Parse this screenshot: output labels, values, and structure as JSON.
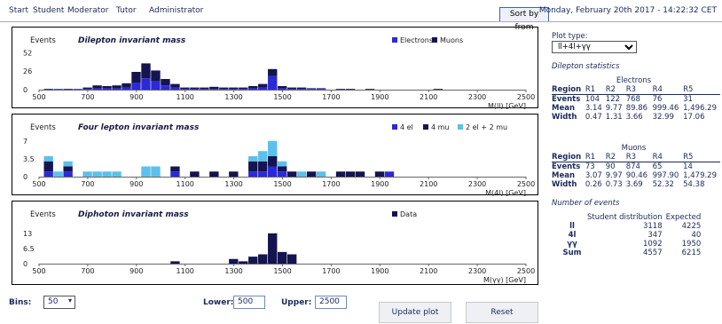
{
  "nav": {
    "items": [
      "Start",
      "Student",
      "Moderator",
      "Tutor",
      "Administrator"
    ],
    "sort_label": "Sort by from",
    "datetime": "Monday, February 20th 2017 - 14:22:32 CET"
  },
  "colors": {
    "electrons": "#2a2ad8",
    "muons": "#141450",
    "light_blue": "#5bc0eb",
    "data": "#141450"
  },
  "chart_data": [
    {
      "type": "bar",
      "title": "Dilepton invariant mass",
      "ylabel": "Events",
      "xlabel": "M(ll) [GeV]",
      "xlim": [
        500,
        2500
      ],
      "ylim": [
        0,
        60
      ],
      "yticks": [
        0,
        26,
        52
      ],
      "xticks": [
        500,
        700,
        900,
        1100,
        1300,
        1500,
        1700,
        1900,
        2100,
        2300,
        2500
      ],
      "bin_width": 40,
      "stacked": true,
      "x": [
        540,
        580,
        620,
        660,
        700,
        740,
        780,
        820,
        860,
        900,
        940,
        980,
        1020,
        1060,
        1100,
        1140,
        1180,
        1220,
        1260,
        1300,
        1340,
        1380,
        1420,
        1460,
        1500,
        1540,
        1580,
        1620,
        1660,
        1700,
        1740,
        1780,
        1820,
        1860,
        1900,
        1940,
        1980,
        2020,
        2060,
        2100,
        2140,
        2180,
        2220,
        2260
      ],
      "series": [
        {
          "name": "Electrons",
          "values": [
            0,
            1,
            0,
            1,
            1,
            2,
            2,
            2,
            3,
            10,
            16,
            12,
            6,
            3,
            1,
            1,
            1,
            1,
            1,
            1,
            1,
            2,
            3,
            19,
            2,
            1,
            1,
            1,
            1,
            0,
            0,
            0,
            0,
            0,
            0,
            0,
            0,
            0,
            0,
            0,
            0,
            0,
            0,
            0
          ]
        },
        {
          "name": "Muons",
          "values": [
            1,
            0,
            1,
            0,
            2,
            4,
            3,
            4,
            6,
            15,
            21,
            15,
            9,
            5,
            2,
            2,
            2,
            3,
            2,
            2,
            2,
            3,
            5,
            10,
            3,
            2,
            2,
            1,
            1,
            0,
            1,
            1,
            0,
            1,
            0,
            0,
            0,
            0,
            0,
            0,
            1,
            0,
            0,
            0
          ]
        }
      ]
    },
    {
      "type": "bar",
      "title": "Four lepton invariant mass",
      "ylabel": "Events",
      "xlabel": "M(4l) [GeV]",
      "xlim": [
        500,
        2500
      ],
      "ylim": [
        0,
        8
      ],
      "yticks": [
        0,
        3.5,
        7
      ],
      "xticks": [
        500,
        700,
        900,
        1100,
        1300,
        1500,
        1700,
        1900,
        2100,
        2300,
        2500
      ],
      "bin_width": 40,
      "stacked": true,
      "x": [
        540,
        580,
        620,
        700,
        740,
        780,
        820,
        860,
        900,
        940,
        980,
        1020,
        1060,
        1100,
        1140,
        1180,
        1220,
        1260,
        1300,
        1340,
        1380,
        1420,
        1460,
        1500,
        1540,
        1580,
        1620,
        1660,
        1700,
        1740,
        1780,
        1820,
        1860,
        1900,
        1940
      ],
      "series": [
        {
          "name": "4 el",
          "values": [
            1,
            0,
            1,
            0,
            0,
            0,
            0,
            0,
            0,
            0,
            0,
            0,
            1,
            0,
            0,
            0,
            0,
            0,
            0,
            0,
            1,
            1,
            2,
            1,
            0,
            0,
            0,
            0,
            0,
            0,
            0,
            0,
            0,
            0,
            1
          ]
        },
        {
          "name": "4 mu",
          "values": [
            2,
            0,
            1,
            0,
            0,
            0,
            0,
            0,
            0,
            0,
            0,
            0,
            1,
            0,
            1,
            0,
            1,
            0,
            1,
            0,
            2,
            2,
            2,
            1,
            1,
            0,
            1,
            0,
            0,
            1,
            1,
            1,
            0,
            1,
            0
          ]
        },
        {
          "name": "2 el + 2 mu",
          "values": [
            1,
            1,
            1,
            1,
            1,
            1,
            1,
            0,
            0,
            2,
            2,
            0,
            0,
            0,
            0,
            0,
            0,
            0,
            0,
            0,
            1,
            2,
            3,
            1,
            0,
            1,
            0,
            1,
            0,
            0,
            0,
            0,
            0,
            0,
            0
          ]
        }
      ]
    },
    {
      "type": "bar",
      "title": "Diphoton invariant mass",
      "ylabel": "Events",
      "xlabel": "M(γγ) [GeV]",
      "xlim": [
        500,
        2500
      ],
      "ylim": [
        0,
        16
      ],
      "yticks": [
        0,
        6.5,
        13
      ],
      "xticks": [
        500,
        700,
        900,
        1100,
        1300,
        1500,
        1700,
        1900,
        2100,
        2300,
        2500
      ],
      "bin_width": 40,
      "stacked": false,
      "x": [
        1060,
        1180,
        1300,
        1340,
        1380,
        1420,
        1460,
        1500,
        1540
      ],
      "series": [
        {
          "name": "Data",
          "values": [
            1,
            0,
            2,
            1,
            3,
            4,
            13,
            5,
            4
          ]
        }
      ]
    }
  ],
  "plot_type": {
    "label": "Plot type:",
    "selected": "ll+4l+γγ"
  },
  "dilepton_label": "Dilepton statistics",
  "electrons": {
    "caption": "Electrons",
    "columns": [
      "Region",
      "R1",
      "R2",
      "R3",
      "R4",
      "R5"
    ],
    "rows": [
      [
        "Events",
        "104",
        "122",
        "768",
        "76",
        "31"
      ],
      [
        "Mean",
        "3.14",
        "9.77",
        "89.86",
        "999.46",
        "1,496.29"
      ],
      [
        "Width",
        "0.47",
        "1.31",
        "3.66",
        "32.99",
        "17.06"
      ]
    ]
  },
  "muons": {
    "caption": "Muons",
    "columns": [
      "Region",
      "R1",
      "R2",
      "R3",
      "R4",
      "R5"
    ],
    "rows": [
      [
        "Events",
        "73",
        "90",
        "874",
        "65",
        "14"
      ],
      [
        "Mean",
        "3.07",
        "9.97",
        "90.46",
        "997.90",
        "1,479.29"
      ],
      [
        "Width",
        "0.26",
        "0.73",
        "3.69",
        "52.32",
        "54.38"
      ]
    ]
  },
  "number_label": "Number of events",
  "events_table": {
    "columns": [
      "",
      "Student distribution",
      "Expected"
    ],
    "rows": [
      [
        "ll",
        "3118",
        "4225"
      ],
      [
        "4l",
        "347",
        "40"
      ],
      [
        "γγ",
        "1092",
        "1950"
      ],
      [
        "Sum",
        "4557",
        "6215"
      ]
    ]
  },
  "controls": {
    "bins_label": "Bins:",
    "bins_value": "50",
    "lower_label": "Lower:",
    "lower_value": "500",
    "upper_label": "Upper:",
    "upper_value": "2500",
    "update_label": "Update plot",
    "reset_label": "Reset"
  }
}
